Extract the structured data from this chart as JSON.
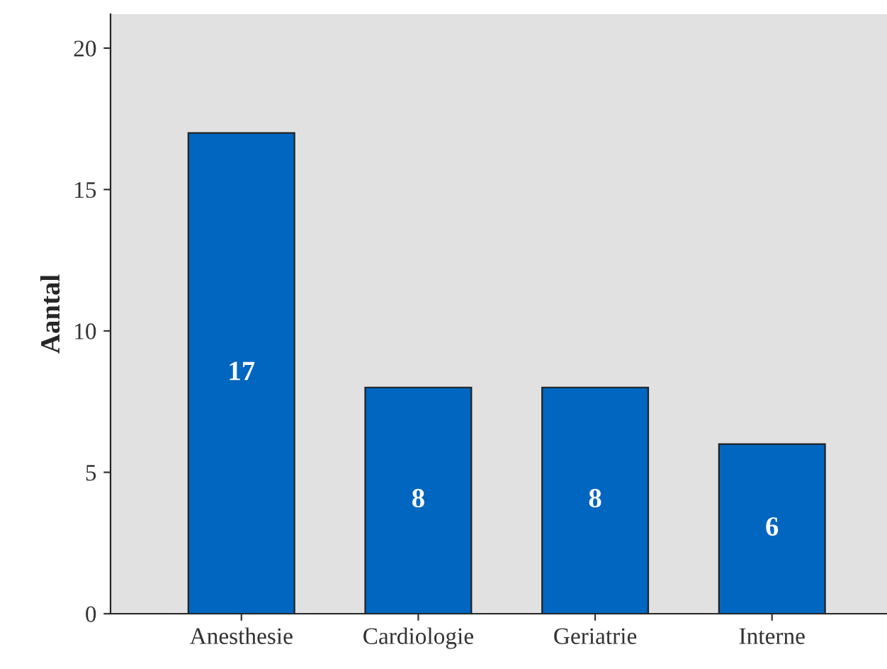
{
  "chart_data": {
    "type": "bar",
    "ylabel": "Aantal",
    "categories": [
      "Anesthesie",
      "Cardiologie",
      "Geriatrie",
      "Interne"
    ],
    "values": [
      17,
      8,
      8,
      6
    ],
    "color": "#0066c0",
    "ylim": [
      0,
      21.2
    ],
    "yticks": [
      0,
      5,
      10,
      15,
      20
    ],
    "grid": false,
    "data_labels": true
  }
}
